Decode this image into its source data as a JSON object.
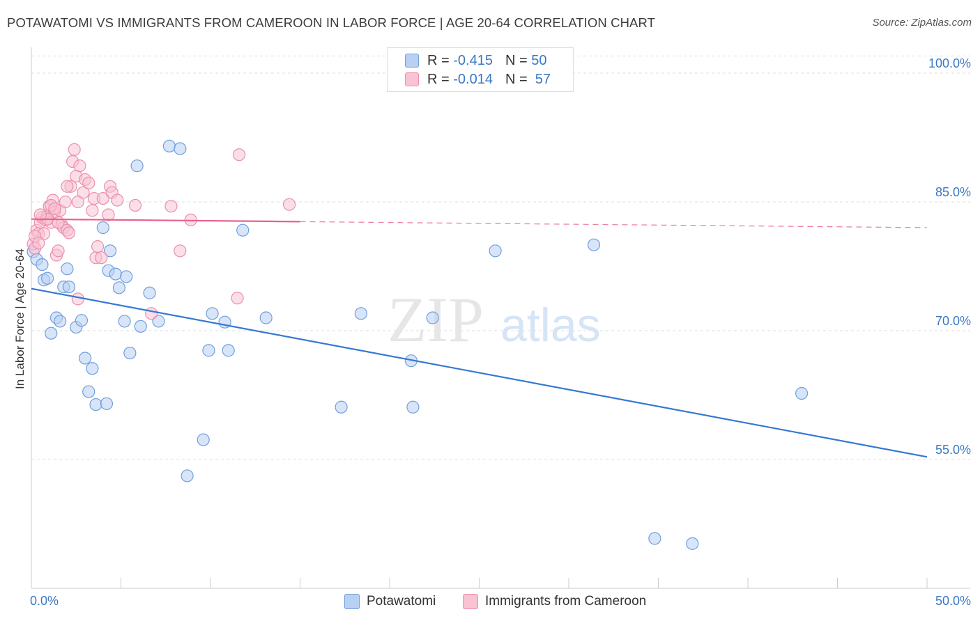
{
  "header": {
    "title": "POTAWATOMI VS IMMIGRANTS FROM CAMEROON IN LABOR FORCE | AGE 20-64 CORRELATION CHART",
    "source": "Source: ZipAtlas.com"
  },
  "watermark": {
    "zip": "ZIP",
    "atlas": "atlas"
  },
  "legend_box": {
    "rows": [
      {
        "r_label": "R =",
        "r_value": "-0.415",
        "n_label": "N =",
        "n_value": "50"
      },
      {
        "r_label": "R =",
        "r_value": "-0.014",
        "n_label": "N =",
        "n_value": "57"
      }
    ]
  },
  "colors": {
    "blue_fill": "#b8d0f2",
    "blue_stroke": "#6f9fdc",
    "blue_line": "#3578d4",
    "pink_fill": "#f8c3d3",
    "pink_stroke": "#eb8fac",
    "pink_line": "#e8608c",
    "axis_value": "#3b78c4",
    "grid": "#dddddd"
  },
  "chart_data": {
    "type": "scatter",
    "title": "POTAWATOMI VS IMMIGRANTS FROM CAMEROON IN LABOR FORCE | AGE 20-64 CORRELATION CHART",
    "xlabel": "",
    "ylabel": "In Labor Force | Age 20-64",
    "xlim": [
      0,
      50
    ],
    "ylim": [
      40,
      103
    ],
    "x_tick_labels": [
      "0.0%",
      "50.0%"
    ],
    "y_ticks": [
      55,
      70,
      85,
      100
    ],
    "y_tick_labels": [
      "55.0%",
      "70.0%",
      "85.0%",
      "100.0%"
    ],
    "legend_position": "bottom",
    "series": [
      {
        "name": "Potawatomi",
        "color": "blue",
        "r": -0.415,
        "n": 50,
        "trend": {
          "x": [
            0,
            50
          ],
          "y": [
            74.9,
            55.3
          ],
          "dashed_from": null
        },
        "points": [
          [
            0.1,
            79.2
          ],
          [
            0.3,
            78.3
          ],
          [
            0.6,
            77.7
          ],
          [
            0.7,
            75.9
          ],
          [
            0.9,
            76.1
          ],
          [
            1.1,
            69.7
          ],
          [
            1.4,
            71.5
          ],
          [
            1.6,
            71.1
          ],
          [
            1.8,
            75.1
          ],
          [
            2.0,
            77.2
          ],
          [
            2.1,
            75.1
          ],
          [
            2.5,
            70.4
          ],
          [
            2.8,
            71.2
          ],
          [
            3.0,
            66.8
          ],
          [
            3.4,
            65.6
          ],
          [
            3.2,
            62.9
          ],
          [
            3.6,
            61.4
          ],
          [
            4.0,
            82.0
          ],
          [
            4.2,
            61.5
          ],
          [
            4.4,
            79.3
          ],
          [
            4.3,
            77.0
          ],
          [
            4.7,
            76.6
          ],
          [
            4.9,
            75.0
          ],
          [
            5.2,
            71.1
          ],
          [
            5.3,
            76.3
          ],
          [
            5.5,
            67.4
          ],
          [
            5.9,
            89.2
          ],
          [
            6.1,
            70.5
          ],
          [
            6.6,
            74.4
          ],
          [
            7.1,
            71.1
          ],
          [
            7.7,
            91.5
          ],
          [
            8.3,
            91.2
          ],
          [
            8.7,
            53.1
          ],
          [
            9.6,
            57.3
          ],
          [
            9.9,
            67.7
          ],
          [
            10.1,
            72.0
          ],
          [
            10.8,
            71.0
          ],
          [
            11.0,
            67.7
          ],
          [
            11.8,
            81.7
          ],
          [
            13.1,
            71.5
          ],
          [
            17.3,
            61.1
          ],
          [
            18.4,
            72.0
          ],
          [
            21.2,
            66.5
          ],
          [
            21.3,
            61.1
          ],
          [
            22.4,
            71.5
          ],
          [
            25.9,
            79.3
          ],
          [
            31.4,
            80.0
          ],
          [
            34.8,
            45.8
          ],
          [
            36.9,
            45.2
          ],
          [
            43.0,
            62.7
          ]
        ]
      },
      {
        "name": "Immigrants from Cameroon",
        "color": "pink",
        "r": -0.014,
        "n": 57,
        "trend": {
          "x": [
            0,
            50
          ],
          "y": [
            83.0,
            82.0
          ],
          "dashed_from": 15
        },
        "points": [
          [
            0.1,
            80.1
          ],
          [
            0.2,
            79.6
          ],
          [
            0.3,
            81.7
          ],
          [
            0.4,
            81.3
          ],
          [
            0.5,
            82.6
          ],
          [
            0.6,
            83.2
          ],
          [
            0.7,
            81.3
          ],
          [
            0.8,
            82.9
          ],
          [
            0.9,
            83.4
          ],
          [
            1.0,
            84.5
          ],
          [
            1.1,
            82.6
          ],
          [
            1.2,
            85.2
          ],
          [
            1.3,
            83.8
          ],
          [
            1.4,
            78.8
          ],
          [
            1.5,
            79.3
          ],
          [
            1.6,
            84.0
          ],
          [
            1.7,
            82.3
          ],
          [
            1.8,
            82.0
          ],
          [
            1.9,
            85.0
          ],
          [
            2.0,
            81.7
          ],
          [
            2.1,
            81.4
          ],
          [
            2.2,
            86.8
          ],
          [
            2.3,
            89.7
          ],
          [
            2.4,
            91.1
          ],
          [
            2.5,
            88.0
          ],
          [
            2.6,
            85.0
          ],
          [
            2.6,
            73.7
          ],
          [
            2.7,
            89.2
          ],
          [
            2.9,
            86.1
          ],
          [
            3.0,
            87.6
          ],
          [
            3.2,
            87.2
          ],
          [
            3.4,
            84.0
          ],
          [
            3.5,
            85.4
          ],
          [
            3.6,
            78.5
          ],
          [
            3.7,
            79.8
          ],
          [
            3.9,
            78.5
          ],
          [
            4.0,
            85.4
          ],
          [
            4.3,
            83.5
          ],
          [
            4.4,
            86.8
          ],
          [
            4.5,
            86.1
          ],
          [
            4.8,
            85.2
          ],
          [
            5.8,
            84.6
          ],
          [
            6.7,
            72.0
          ],
          [
            7.8,
            84.5
          ],
          [
            8.3,
            79.3
          ],
          [
            8.9,
            82.9
          ],
          [
            11.5,
            73.8
          ],
          [
            11.6,
            90.5
          ],
          [
            14.4,
            84.7
          ],
          [
            0.2,
            81.0
          ],
          [
            0.4,
            80.2
          ],
          [
            0.9,
            83.0
          ],
          [
            1.1,
            84.6
          ],
          [
            1.5,
            82.6
          ],
          [
            2.0,
            86.8
          ],
          [
            0.5,
            83.5
          ],
          [
            1.3,
            84.2
          ]
        ]
      }
    ]
  },
  "bottom_legend": {
    "items": [
      {
        "label": "Potawatomi"
      },
      {
        "label": "Immigrants from Cameroon"
      }
    ]
  }
}
